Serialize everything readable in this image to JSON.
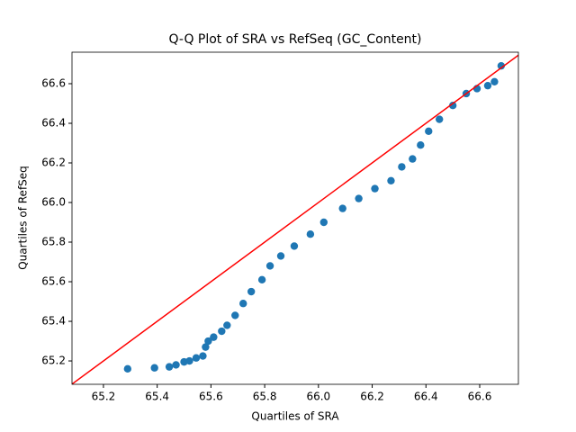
{
  "chart_data": {
    "type": "scatter",
    "title": "Q-Q Plot of SRA vs RefSeq (GC_Content)",
    "x_label": "Quartiles of SRA",
    "y_label": "Quartiles of RefSeq",
    "xlim": [
      65.083,
      66.744
    ],
    "ylim": [
      65.082,
      66.759
    ],
    "xticks": [
      65.2,
      65.4,
      65.6,
      65.8,
      {
        "value": 66,
        "label": "66.0"
      },
      66.2,
      66.4,
      66.6
    ],
    "yticks": [
      65.2,
      65.4,
      65.6,
      65.8,
      {
        "value": 66,
        "label": "66.0"
      },
      66.2,
      66.4,
      66.6
    ],
    "reference_line_color": "#ff0000",
    "series": [
      {
        "color": "#1f77b4",
        "x": [
          65.29,
          65.39,
          65.445,
          65.47,
          65.5,
          65.52,
          65.545,
          65.57,
          65.58,
          65.59,
          65.61,
          65.64,
          65.66,
          65.69,
          65.72,
          65.75,
          65.79,
          65.82,
          65.86,
          65.91,
          65.97,
          66.02,
          66.09,
          66.15,
          66.21,
          66.27,
          66.31,
          66.35,
          66.38,
          66.41,
          66.45,
          66.5,
          66.55,
          66.59,
          66.63,
          66.655,
          66.68
        ],
        "values": [
          65.16,
          65.165,
          65.17,
          65.18,
          65.195,
          65.2,
          65.215,
          65.225,
          65.27,
          65.3,
          65.32,
          65.35,
          65.38,
          65.43,
          65.49,
          65.55,
          65.61,
          65.68,
          65.73,
          65.78,
          65.84,
          65.9,
          65.97,
          66.02,
          66.07,
          66.11,
          66.18,
          66.22,
          66.29,
          66.36,
          66.42,
          66.49,
          66.55,
          66.575,
          66.59,
          66.61,
          66.69
        ]
      }
    ]
  }
}
